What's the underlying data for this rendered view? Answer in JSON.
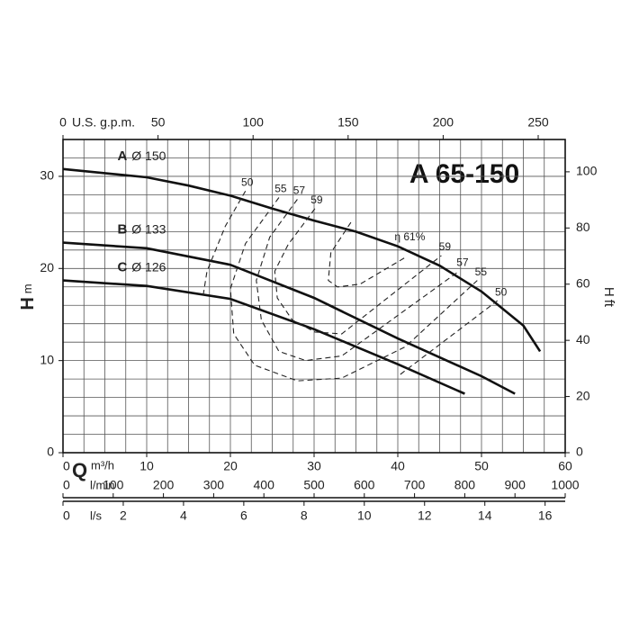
{
  "chart_data": {
    "type": "line",
    "title": "A 65-150",
    "x_label": "Q",
    "x_unit": "m³/h",
    "xlim": [
      0,
      60
    ],
    "xticks": [
      0,
      10,
      20,
      30,
      40,
      50,
      60
    ],
    "y_label": "H",
    "y_unit": "m",
    "ylim": [
      0,
      34
    ],
    "yticks": [
      0,
      10,
      20,
      30
    ],
    "y2_label": "H",
    "y2_unit": "ft",
    "y2lim": [
      0,
      111.5
    ],
    "y2ticks": [
      0,
      20,
      40,
      60,
      80,
      100
    ],
    "grid": true,
    "x_grid": [
      0,
      2.5,
      5,
      7.5,
      10,
      12.5,
      15,
      17.5,
      20,
      22.5,
      25,
      27.5,
      30,
      32.5,
      35,
      37.5,
      40,
      42.5,
      45,
      47.5,
      50,
      52.5,
      55,
      57.5,
      60
    ],
    "y_grid": [
      0,
      2,
      4,
      6,
      8,
      10,
      12,
      14,
      16,
      18,
      20,
      22,
      24,
      26,
      28,
      30,
      32,
      34
    ],
    "top_axis": {
      "label": "U.S. g.p.m.",
      "lim": [
        0,
        264.2
      ],
      "ticks": [
        0,
        50,
        100,
        150,
        200,
        250
      ]
    },
    "bottom_axes": [
      {
        "label": "l/min",
        "lim": [
          0,
          1000
        ],
        "ticks": [
          0,
          100,
          200,
          300,
          400,
          500,
          600,
          700,
          800,
          900,
          1000
        ]
      },
      {
        "label": "l/s",
        "lim": [
          0,
          16.667
        ],
        "ticks": [
          0,
          2,
          4,
          6,
          8,
          10,
          12,
          14,
          16
        ]
      }
    ],
    "series": [
      {
        "name": "A",
        "label": "Ø 150",
        "color": "#111111",
        "x": [
          0,
          10,
          15,
          20,
          25,
          30,
          35,
          40,
          45,
          50,
          55,
          57
        ],
        "values": [
          30.8,
          29.9,
          29.0,
          27.9,
          26.5,
          25.2,
          24.0,
          22.4,
          20.3,
          17.5,
          13.8,
          11.0
        ]
      },
      {
        "name": "B",
        "label": "Ø 133",
        "color": "#111111",
        "x": [
          0,
          10,
          20,
          30,
          40,
          50,
          54
        ],
        "values": [
          22.8,
          22.2,
          20.4,
          16.8,
          12.4,
          8.3,
          6.4
        ]
      },
      {
        "name": "C",
        "label": "Ø 126",
        "color": "#111111",
        "x": [
          0,
          10,
          20,
          30,
          40,
          48
        ],
        "values": [
          18.7,
          18.1,
          16.7,
          13.4,
          9.6,
          6.4
        ]
      }
    ],
    "efficiency": [
      {
        "name": "50",
        "x": [
          21.8,
          19.4,
          17.2,
          16.7,
          null,
          40.3,
          51.9
        ],
        "values": [
          28.4,
          24.6,
          19.7,
          16.8,
          null,
          8.5,
          16.5
        ]
      },
      {
        "name": "55",
        "x": [
          25.8,
          21.8,
          20.0,
          20.4,
          22.9,
          28.0,
          33.3,
          40.9,
          49.5
        ],
        "values": [
          27.7,
          22.7,
          17.8,
          12.9,
          9.5,
          7.8,
          8.1,
          11.5,
          18.7
        ]
      },
      {
        "name": "57",
        "x": [
          28.0,
          24.7,
          23.1,
          23.7,
          25.8,
          29.0,
          33.3,
          47.3
        ],
        "values": [
          27.5,
          23.4,
          18.7,
          14.4,
          11.0,
          10.0,
          10.5,
          19.7
        ]
      },
      {
        "name": "59",
        "x": [
          30.1,
          26.9,
          25.3,
          25.6,
          27.4,
          30.1,
          33.3,
          45.2
        ],
        "values": [
          26.5,
          22.6,
          19.7,
          16.8,
          14.4,
          13.1,
          12.9,
          21.4
        ]
      },
      {
        "name": "η 61%",
        "x": [
          34.4,
          32.0,
          31.7,
          32.8,
          35.5,
          40.9
        ],
        "values": [
          25.0,
          21.7,
          18.7,
          18.0,
          18.3,
          21.2
        ]
      }
    ]
  }
}
